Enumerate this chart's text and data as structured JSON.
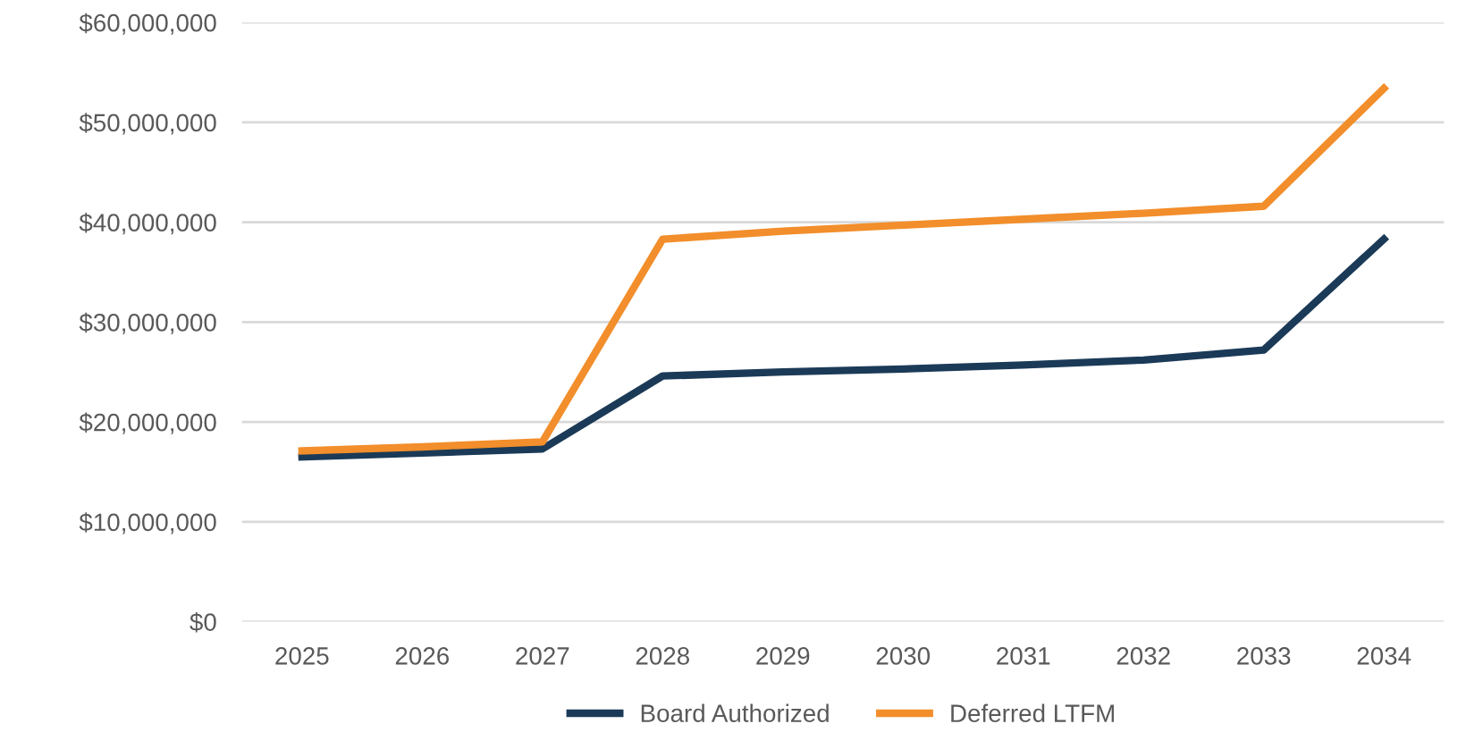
{
  "chart_data": {
    "type": "line",
    "categories": [
      "2025",
      "2026",
      "2027",
      "2028",
      "2029",
      "2030",
      "2031",
      "2032",
      "2033",
      "2034"
    ],
    "series": [
      {
        "name": "Board Authorized",
        "color": "#1b3a57",
        "values": [
          16500000.0,
          16900000.0,
          17300000.0,
          24600000.0,
          25000000.0,
          25300000.0,
          25700000.0,
          26200000.0,
          27200000.0,
          38300000.0
        ]
      },
      {
        "name": "Deferred LTFM",
        "color": "#f28e2b",
        "values": [
          17100000.0,
          17500000.0,
          18000000.0,
          38300000.0,
          39100000.0,
          39700000.0,
          40300000.0,
          40900000.0,
          41600000.0,
          53400000.0
        ]
      }
    ],
    "ylim": [
      0,
      60000000
    ],
    "yticks": [
      {
        "value": 0,
        "label": "$0"
      },
      {
        "value": 10000000,
        "label": "$10,000,000"
      },
      {
        "value": 20000000,
        "label": "$20,000,000"
      },
      {
        "value": 30000000,
        "label": "$30,000,000"
      },
      {
        "value": 40000000,
        "label": "$40,000,000"
      },
      {
        "value": 50000000,
        "label": "$50,000,000"
      },
      {
        "value": 60000000,
        "label": "$60,000,000"
      }
    ],
    "grid": "y",
    "legend": "bottom",
    "marker": "none",
    "line_style": "solid"
  }
}
